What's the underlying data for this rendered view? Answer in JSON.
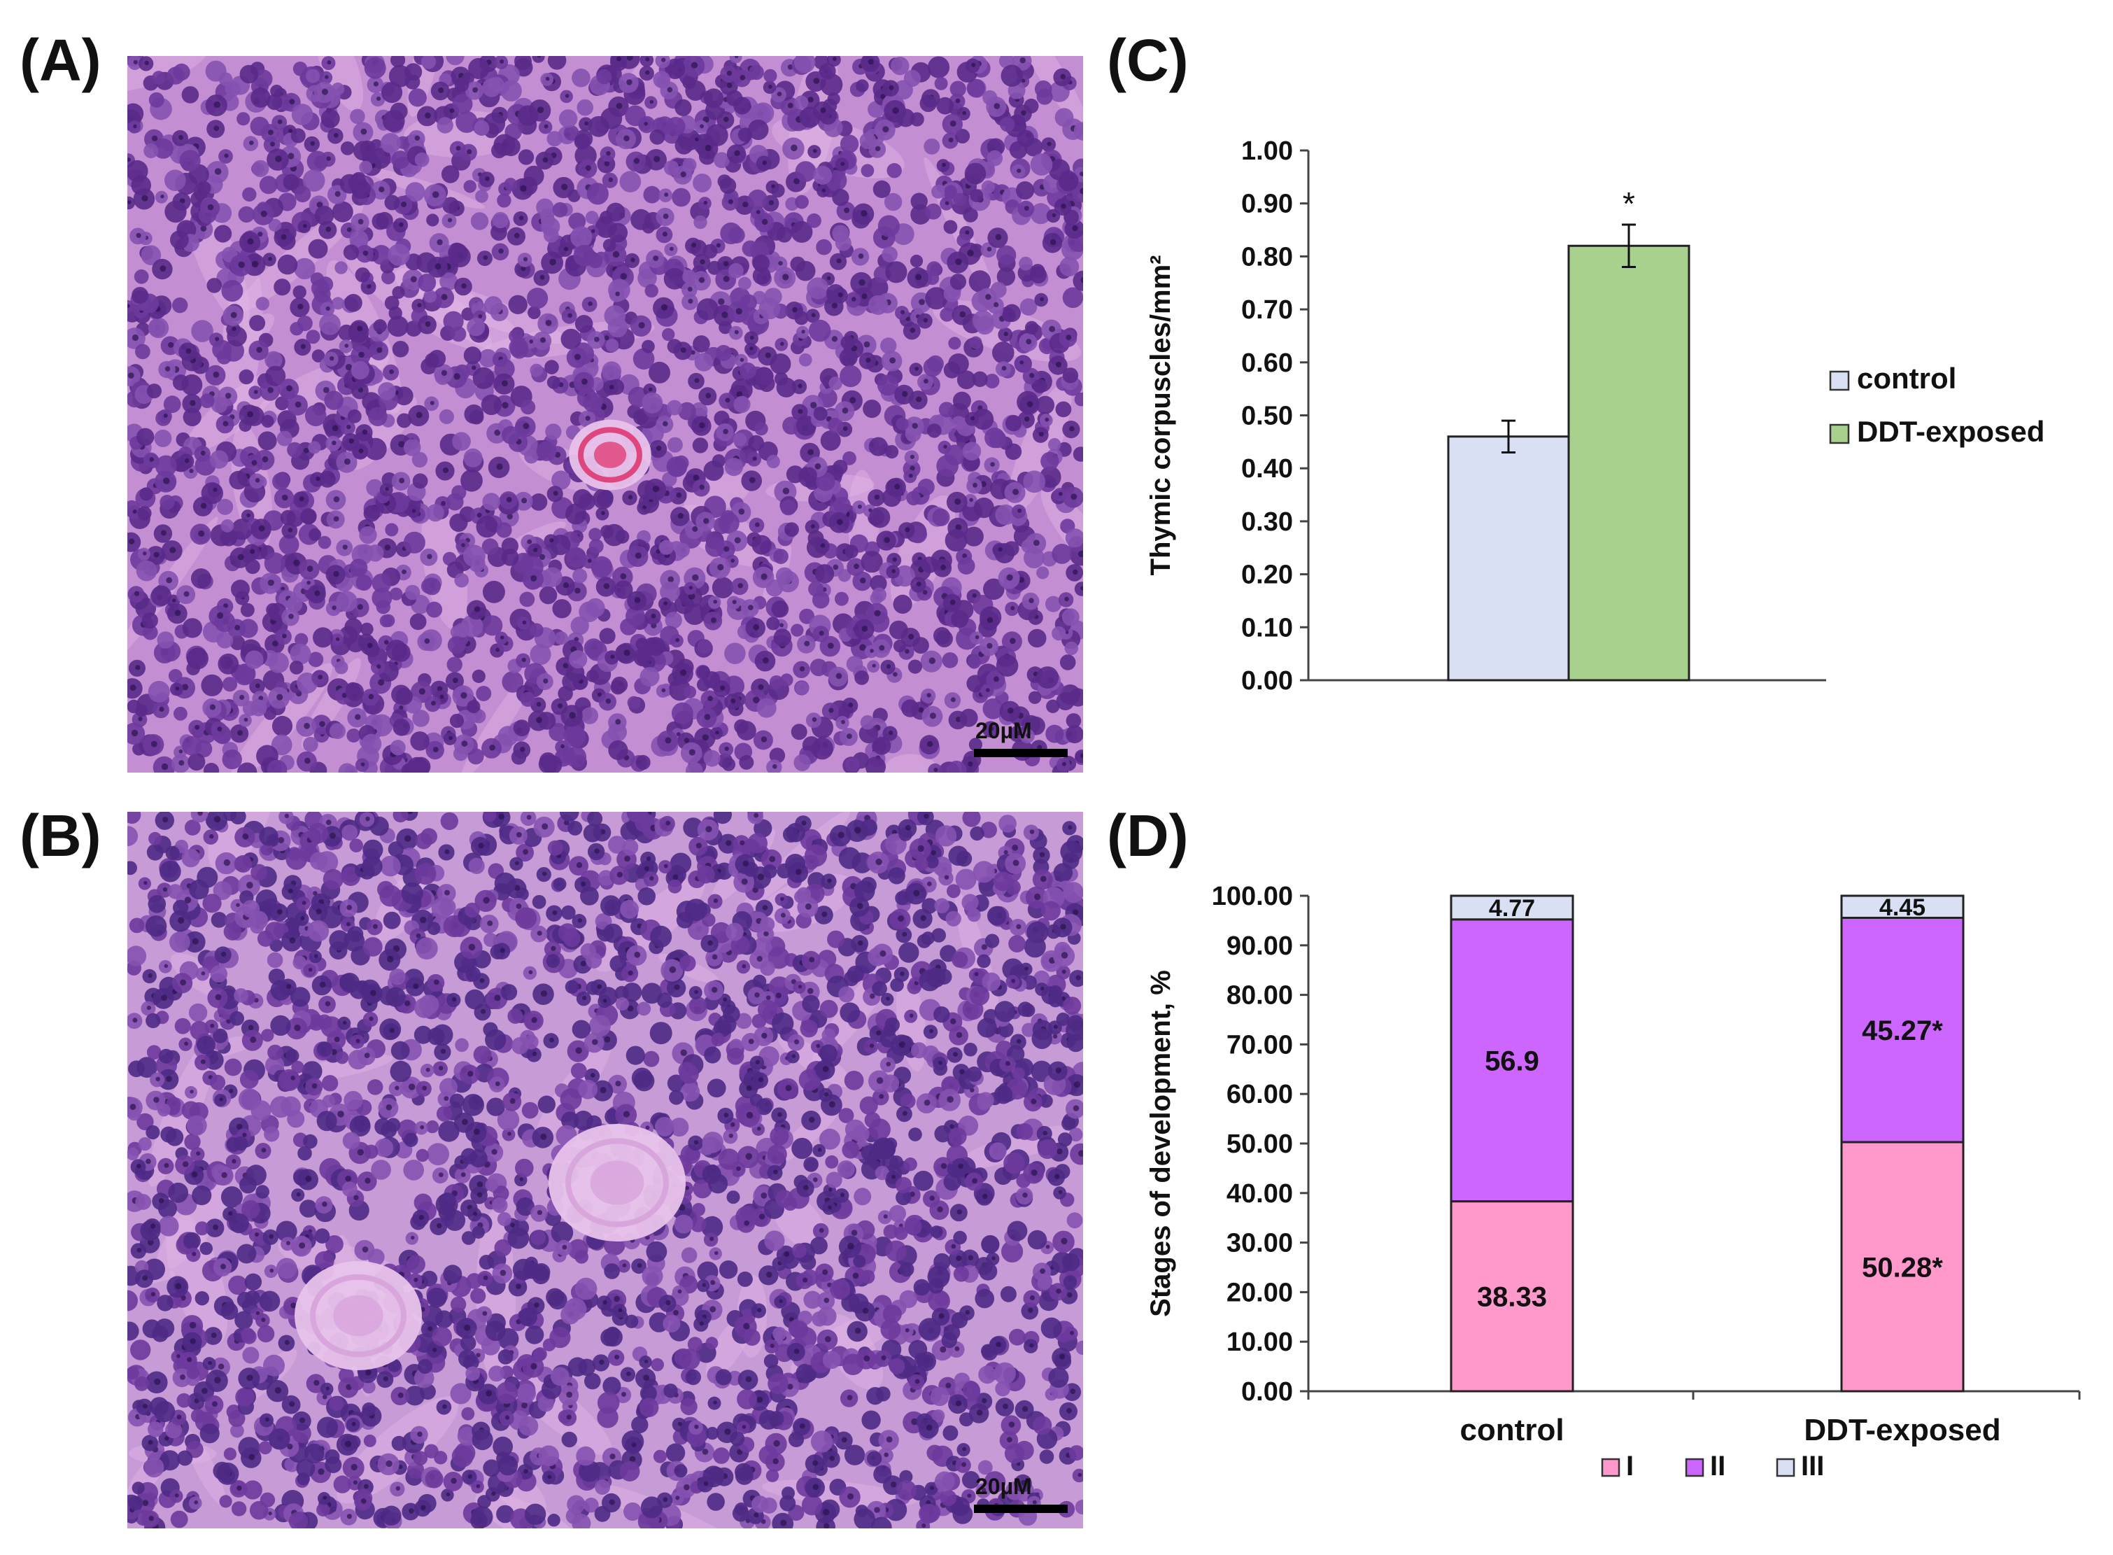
{
  "panels": {
    "a_label": "(A)",
    "b_label": "(B)",
    "c_label": "(C)",
    "d_label": "(D)"
  },
  "micrographs": [
    {
      "id": "A",
      "scale_bar": "20µM",
      "stain_colors": {
        "background": "#c48fd2",
        "nucleus": "#5a2a8a",
        "corpuscle": "#e0467e"
      }
    },
    {
      "id": "B",
      "scale_bar": "20µM",
      "stain_colors": {
        "background": "#c79bd6",
        "nucleus": "#4e2a85",
        "corpuscle": "#d8a6dd"
      }
    }
  ],
  "chart_data": [
    {
      "type": "bar",
      "categories": [
        "control",
        "DDT-exposed"
      ],
      "values": [
        0.46,
        0.82
      ],
      "errors": [
        0.03,
        0.04
      ],
      "significance": [
        "",
        "*"
      ],
      "colors": [
        "#dae0f3",
        "#a9d18e"
      ],
      "ylabel": "Thymic corpuscles/mm²",
      "ylim": [
        0,
        1.0
      ],
      "yticks": [
        "0.00",
        "0.10",
        "0.20",
        "0.30",
        "0.40",
        "0.50",
        "0.60",
        "0.70",
        "0.80",
        "0.90",
        "1.00"
      ],
      "legend": [
        "control",
        "DDT-exposed"
      ],
      "legend_position": "right"
    },
    {
      "type": "bar",
      "stacked": true,
      "categories": [
        "control",
        "DDT-exposed"
      ],
      "series": [
        {
          "name": "I",
          "values": [
            38.33,
            50.28
          ],
          "labels": [
            "38.33",
            "50.28*"
          ],
          "color": "#ff99cc"
        },
        {
          "name": "II",
          "values": [
            56.9,
            45.27
          ],
          "labels": [
            "56.9",
            "45.27*"
          ],
          "color": "#cc66ff"
        },
        {
          "name": "III",
          "values": [
            4.77,
            4.45
          ],
          "labels": [
            "4.77",
            "4.45"
          ],
          "color": "#dae0f3"
        }
      ],
      "ylabel": "Stages of development, %",
      "ylim": [
        0,
        100
      ],
      "yticks": [
        "0.00",
        "10.00",
        "20.00",
        "30.00",
        "40.00",
        "50.00",
        "60.00",
        "70.00",
        "80.00",
        "90.00",
        "100.00"
      ],
      "legend": [
        "I",
        "II",
        "III"
      ],
      "legend_position": "bottom"
    }
  ]
}
